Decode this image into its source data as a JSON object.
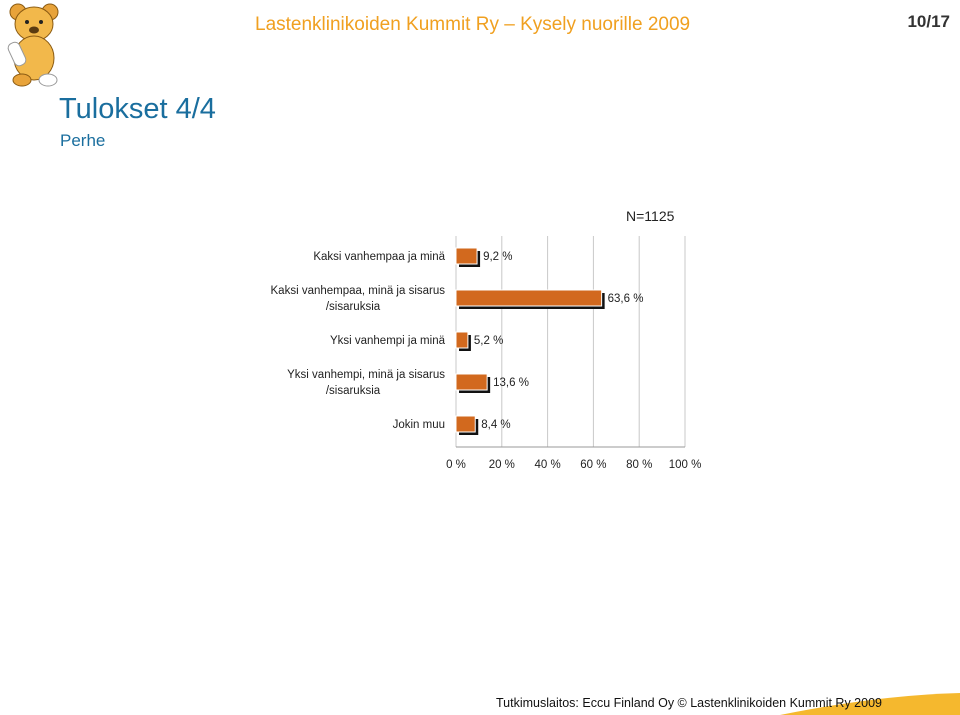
{
  "header": {
    "title": "Lastenklinikoiden Kummit Ry – Kysely nuorille 2009",
    "page_number": "10/17",
    "brand_color": "#f0a020"
  },
  "page": {
    "title": "Tulokset 4/4",
    "subtitle": "Perhe"
  },
  "logo": {
    "icon": "teddy-bear-icon"
  },
  "chart_data": {
    "type": "bar",
    "orientation": "horizontal",
    "annotation": "N=1125",
    "categories": [
      [
        "Kaksi vanhempaa ja minä"
      ],
      [
        "Kaksi vanhempaa, minä ja sisarus",
        "/sisaruksia"
      ],
      [
        "Yksi vanhempi ja minä"
      ],
      [
        "Yksi vanhempi, minä ja sisarus",
        "/sisaruksia"
      ],
      [
        "Jokin muu"
      ]
    ],
    "values": [
      9.2,
      63.6,
      5.2,
      13.6,
      8.4
    ],
    "value_labels": [
      "9,2 %",
      "63,6 %",
      "5,2 %",
      "13,6 %",
      "8,4 %"
    ],
    "xlim": [
      0,
      100
    ],
    "xticks": [
      0,
      20,
      40,
      60,
      80,
      100
    ],
    "xtick_labels": [
      "0 %",
      "20 %",
      "40 %",
      "60 %",
      "80 %",
      "100 %"
    ],
    "grid": true,
    "legend": "none",
    "bar_color": "#d2691e",
    "xlabel": "",
    "ylabel": ""
  },
  "footer": {
    "text": "Tutkimuslaitos: Eccu Finland Oy © Lastenklinikoiden Kummit Ry 2009",
    "accent_color": "#f5b82e"
  }
}
